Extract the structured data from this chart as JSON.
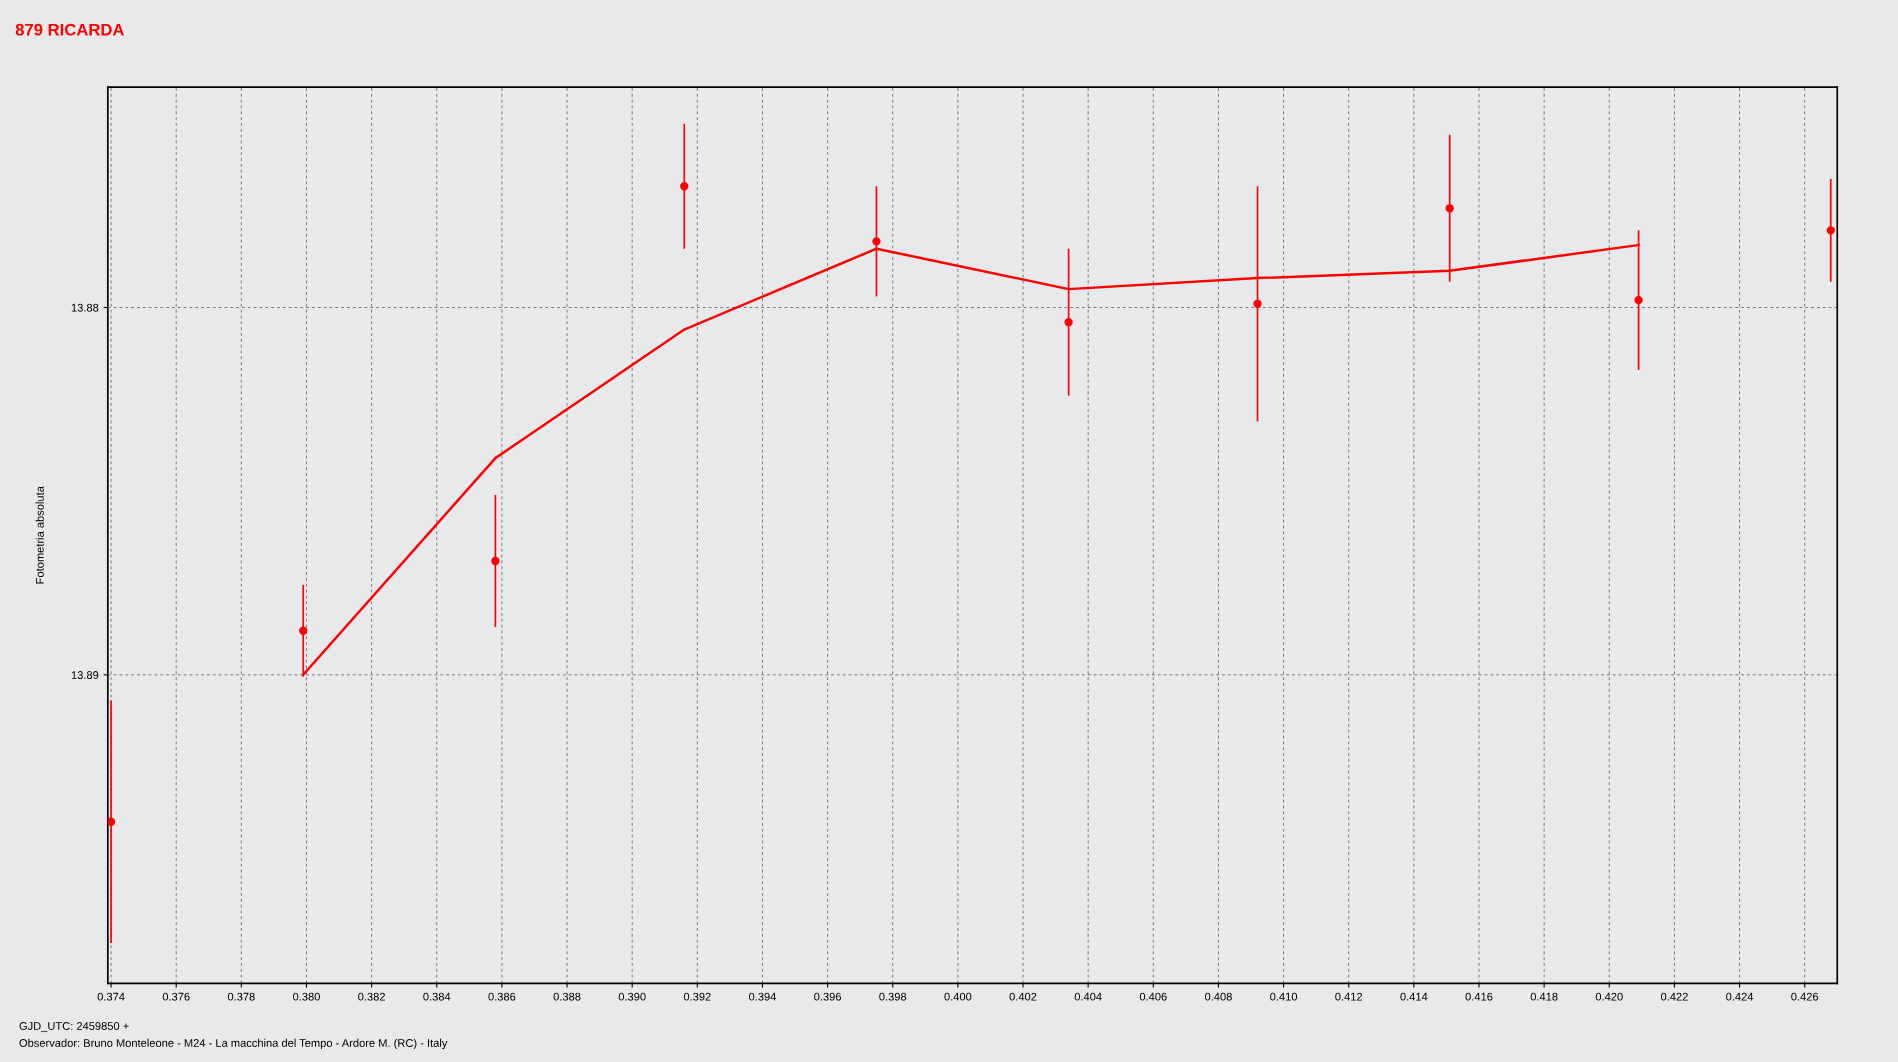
{
  "chart_data": {
    "type": "scatter",
    "title": "879 RICARDA",
    "ylabel": "Fotometria absoluta",
    "annotations": [
      "GJD_UTC: 2459850 +",
      "Observador: Bruno Monteleone - M24 - La macchina del Tempo - Ardore M. (RC) - Italy"
    ],
    "x": [
      0.374,
      0.3799,
      0.3858,
      0.3916,
      0.3975,
      0.4034,
      0.4092,
      0.4151,
      0.4209,
      0.4268
    ],
    "series": [
      {
        "color": "#ff0000",
        "marker": "circle",
        "values": [
          13.894,
          13.8888,
          13.8869,
          13.8767,
          13.8782,
          13.8804,
          13.8799,
          13.8773,
          13.8798,
          13.8779
        ],
        "errors": [
          0.0033,
          0.00125,
          0.0018,
          0.0017,
          0.0015,
          0.002,
          0.0032,
          0.002,
          0.0019,
          0.0014
        ]
      },
      {
        "type": "line",
        "color": "#ff0000",
        "line_style": "solid",
        "x": [
          0.3799,
          0.3858,
          0.3916,
          0.3975,
          0.4034,
          0.4092,
          0.4151,
          0.4209
        ],
        "values": [
          13.89,
          13.8841,
          13.8806,
          13.8784,
          13.8795,
          13.8792,
          13.879,
          13.8783
        ]
      }
    ],
    "xlim": [
      0.3739,
      0.427
    ],
    "ylim": [
      13.8984,
      13.874
    ],
    "xticks": [
      {
        "value": 0.374,
        "label": "0.374"
      },
      {
        "value": 0.376,
        "label": "0.376"
      },
      {
        "value": 0.378,
        "label": "0.378"
      },
      {
        "value": 0.38,
        "label": "0.380"
      },
      {
        "value": 0.382,
        "label": "0.382"
      },
      {
        "value": 0.384,
        "label": "0.384"
      },
      {
        "value": 0.386,
        "label": "0.386"
      },
      {
        "value": 0.388,
        "label": "0.388"
      },
      {
        "value": 0.39,
        "label": "0.390"
      },
      {
        "value": 0.392,
        "label": "0.392"
      },
      {
        "value": 0.394,
        "label": "0.394"
      },
      {
        "value": 0.396,
        "label": "0.396"
      },
      {
        "value": 0.398,
        "label": "0.398"
      },
      {
        "value": 0.4,
        "label": "0.400"
      },
      {
        "value": 0.402,
        "label": "0.402"
      },
      {
        "value": 0.404,
        "label": "0.404"
      },
      {
        "value": 0.406,
        "label": "0.406"
      },
      {
        "value": 0.408,
        "label": "0.408"
      },
      {
        "value": 0.41,
        "label": "0.410"
      },
      {
        "value": 0.412,
        "label": "0.412"
      },
      {
        "value": 0.414,
        "label": "0.414"
      },
      {
        "value": 0.416,
        "label": "0.416"
      },
      {
        "value": 0.418,
        "label": "0.418"
      },
      {
        "value": 0.42,
        "label": "0.420"
      },
      {
        "value": 0.422,
        "label": "0.422"
      },
      {
        "value": 0.424,
        "label": "0.424"
      },
      {
        "value": 0.426,
        "label": "0.426"
      }
    ],
    "yticks": [
      13.88,
      13.89
    ],
    "grid": true,
    "legend": false
  }
}
